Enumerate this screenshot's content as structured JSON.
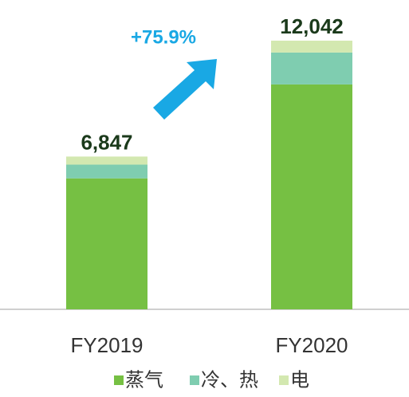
{
  "chart_data": {
    "type": "bar",
    "stacked": true,
    "categories": [
      "FY2019",
      "FY2020"
    ],
    "series": [
      {
        "name": "蒸气",
        "color": "#76c043",
        "values": [
          5870,
          10080
        ]
      },
      {
        "name": "冷、热",
        "color": "#7fcdb0",
        "values": [
          615,
          1430
        ]
      },
      {
        "name": "电",
        "color": "#d3e8b0",
        "values": [
          362,
          532
        ]
      }
    ],
    "totals": [
      6847,
      12042
    ],
    "total_labels": [
      "6,847",
      "12,042"
    ],
    "annotation": "+75.9%"
  }
}
